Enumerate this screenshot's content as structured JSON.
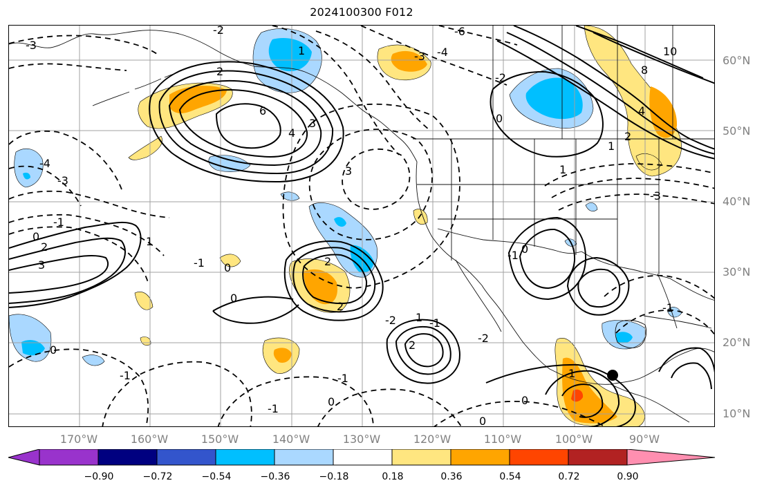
{
  "title": "2024100300 F012",
  "map": {
    "latitude_labels": [
      "60°N",
      "50°N",
      "40°N",
      "30°N",
      "20°N",
      "10°N"
    ],
    "longitude_labels": [
      "170°W",
      "160°W",
      "150°W",
      "140°W",
      "130°W",
      "120°W",
      "110°W",
      "100°W",
      "90°W"
    ],
    "contour_labels": [
      {
        "text": "-2"
      },
      {
        "text": "-3"
      },
      {
        "text": "1"
      },
      {
        "text": "6"
      },
      {
        "text": "4"
      },
      {
        "text": "3"
      },
      {
        "text": "2"
      },
      {
        "text": "-6"
      },
      {
        "text": "-4"
      },
      {
        "text": "-3"
      },
      {
        "text": "10"
      },
      {
        "text": "8"
      },
      {
        "text": "4"
      },
      {
        "text": "0"
      },
      {
        "text": "2"
      },
      {
        "text": "1"
      },
      {
        "text": "-2"
      },
      {
        "text": "-4"
      },
      {
        "text": "-3"
      },
      {
        "text": "-1"
      },
      {
        "text": "0"
      },
      {
        "text": "2"
      },
      {
        "text": "3"
      },
      {
        "text": "3"
      },
      {
        "text": "0"
      },
      {
        "text": "-1"
      },
      {
        "text": "1"
      },
      {
        "text": "2"
      },
      {
        "text": "2"
      },
      {
        "text": "-2"
      },
      {
        "text": "2"
      },
      {
        "text": "1"
      },
      {
        "text": "0"
      },
      {
        "text": "-1"
      },
      {
        "text": "0"
      },
      {
        "text": "-2"
      },
      {
        "text": "-1"
      },
      {
        "text": "0"
      },
      {
        "text": "-1"
      },
      {
        "text": "-1"
      },
      {
        "text": "-1"
      },
      {
        "text": "0"
      },
      {
        "text": "0"
      },
      {
        "text": "1"
      },
      {
        "text": "0"
      },
      {
        "text": "-1"
      },
      {
        "text": "-3"
      },
      {
        "text": "1"
      }
    ],
    "marker": "filled-black-dot"
  },
  "colorbar": {
    "labels": [
      "−0.90",
      "−0.72",
      "−0.54",
      "−0.36",
      "−0.18",
      "0.18",
      "0.36",
      "0.54",
      "0.72",
      "0.90"
    ],
    "colors": [
      "#9933cc",
      "#000080",
      "#3355cc",
      "#00bfff",
      "#aad8ff",
      "#ffffff",
      "#ffe680",
      "#ffa500",
      "#ff4500",
      "#b22222",
      "#ff8fb0"
    ]
  }
}
